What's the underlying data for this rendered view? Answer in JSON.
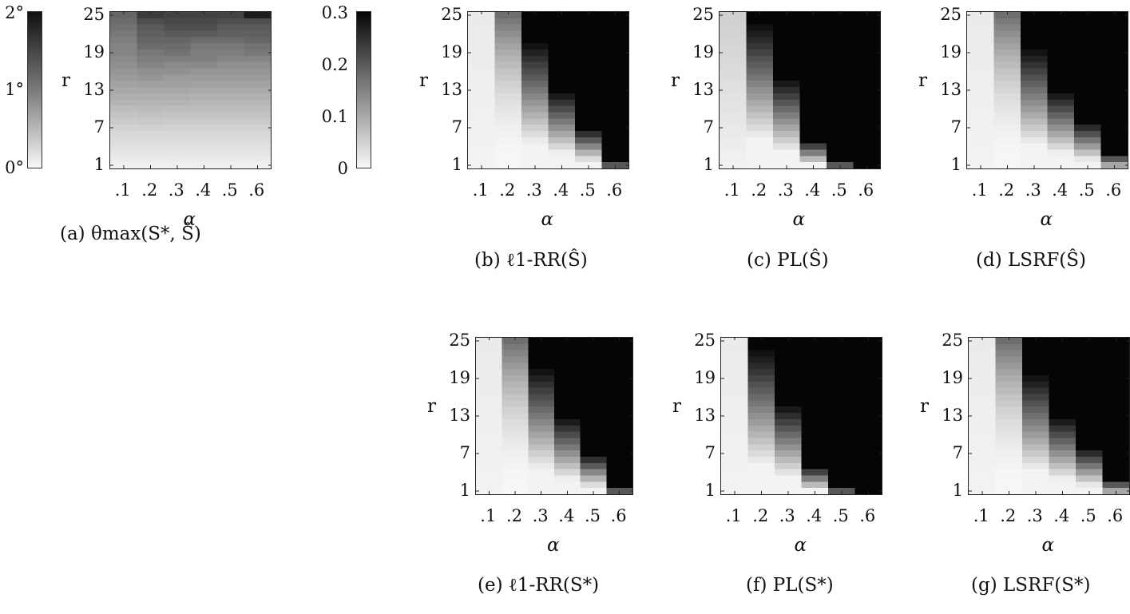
{
  "figure": {
    "colorbars": [
      {
        "id": "a",
        "ticks": [
          "2°",
          "1°",
          "0°"
        ],
        "range": [
          0,
          2
        ]
      },
      {
        "id": "b-g",
        "ticks": [
          "0.3",
          "0.2",
          "0.1",
          "0"
        ],
        "range": [
          0,
          0.3
        ]
      }
    ],
    "axis_common": {
      "xlabel": "α",
      "ylabel": "r",
      "xticks": [
        ".1",
        ".2",
        ".3",
        ".4",
        ".5",
        ".6"
      ],
      "yticks": [
        "25",
        "19",
        "13",
        "7",
        "1"
      ]
    }
  },
  "chart_data": [
    {
      "id": "a",
      "type": "heatmap",
      "title": "(a) θmax(S*, Ŝ)",
      "xlabel": "α",
      "ylabel": "r",
      "x": [
        0.1,
        0.2,
        0.3,
        0.4,
        0.5,
        0.6
      ],
      "y_rows_top_to_bottom": [
        25,
        1
      ],
      "colorbar_range": [
        0,
        2
      ],
      "units": "degrees",
      "values_top_to_bottom": [
        [
          1.2,
          1.55,
          1.5,
          1.5,
          1.5,
          1.8
        ],
        [
          1.15,
          1.4,
          1.45,
          1.45,
          1.4,
          1.4
        ],
        [
          1.1,
          1.3,
          1.4,
          1.4,
          1.3,
          1.3
        ],
        [
          1.05,
          1.25,
          1.3,
          1.3,
          1.25,
          1.25
        ],
        [
          1.0,
          1.2,
          1.2,
          1.15,
          1.15,
          1.2
        ],
        [
          0.95,
          1.15,
          1.15,
          1.05,
          1.05,
          1.1
        ],
        [
          0.95,
          1.05,
          1.1,
          1.0,
          1.0,
          1.05
        ],
        [
          0.9,
          1.0,
          1.0,
          1.0,
          0.95,
          0.95
        ],
        [
          0.85,
          0.95,
          0.9,
          0.9,
          0.85,
          0.85
        ],
        [
          0.8,
          0.85,
          0.85,
          0.8,
          0.8,
          0.8
        ],
        [
          0.75,
          0.8,
          0.75,
          0.75,
          0.75,
          0.75
        ],
        [
          0.7,
          0.72,
          0.72,
          0.7,
          0.7,
          0.7
        ],
        [
          0.65,
          0.66,
          0.66,
          0.64,
          0.64,
          0.64
        ],
        [
          0.6,
          0.6,
          0.6,
          0.58,
          0.58,
          0.58
        ],
        [
          0.55,
          0.55,
          0.55,
          0.53,
          0.53,
          0.53
        ],
        [
          0.48,
          0.5,
          0.48,
          0.48,
          0.48,
          0.48
        ],
        [
          0.42,
          0.44,
          0.42,
          0.42,
          0.42,
          0.42
        ],
        [
          0.36,
          0.38,
          0.36,
          0.36,
          0.36,
          0.36
        ],
        [
          0.3,
          0.32,
          0.3,
          0.3,
          0.3,
          0.3
        ],
        [
          0.26,
          0.26,
          0.26,
          0.26,
          0.26,
          0.26
        ],
        [
          0.22,
          0.22,
          0.22,
          0.22,
          0.22,
          0.22
        ],
        [
          0.18,
          0.18,
          0.18,
          0.18,
          0.18,
          0.18
        ],
        [
          0.14,
          0.14,
          0.14,
          0.14,
          0.14,
          0.14
        ],
        [
          0.1,
          0.1,
          0.1,
          0.1,
          0.1,
          0.1
        ],
        [
          0.06,
          0.06,
          0.06,
          0.06,
          0.06,
          0.06
        ]
      ]
    },
    {
      "id": "b",
      "type": "heatmap",
      "title": "(b) ℓ1-RR(Ŝ)",
      "xlabel": "α",
      "ylabel": "r",
      "colorbar_range": [
        0,
        0.3
      ],
      "x": [
        0.1,
        0.2,
        0.3,
        0.4,
        0.5,
        0.6
      ],
      "y": [
        1,
        25
      ],
      "profile": {
        "onset_r_dark_by_alpha": [
          null,
          null,
          21,
          13,
          7,
          2
        ],
        "col2_top": 0.17,
        "col1_max": 0.02
      }
    },
    {
      "id": "c",
      "type": "heatmap",
      "title": "(c) PL(Ŝ)",
      "xlabel": "α",
      "ylabel": "r",
      "colorbar_range": [
        0,
        0.3
      ],
      "x": [
        0.1,
        0.2,
        0.3,
        0.4,
        0.5,
        0.6
      ],
      "y": [
        1,
        25
      ],
      "profile": {
        "onset_r_dark_by_alpha": [
          null,
          24,
          15,
          5,
          2,
          1
        ],
        "col1_top": 0.09
      }
    },
    {
      "id": "d",
      "type": "heatmap",
      "title": "(d) LSRF(Ŝ)",
      "xlabel": "α",
      "ylabel": "r",
      "colorbar_range": [
        0,
        0.3
      ],
      "x": [
        0.1,
        0.2,
        0.3,
        0.4,
        0.5,
        0.6
      ],
      "y": [
        1,
        25
      ],
      "profile": {
        "onset_r_dark_by_alpha": [
          null,
          null,
          20,
          13,
          8,
          3
        ],
        "col2_top": 0.17
      }
    },
    {
      "id": "e",
      "type": "heatmap",
      "title": "(e) ℓ1-RR(S*)",
      "xlabel": "α",
      "ylabel": "r",
      "colorbar_range": [
        0,
        0.3
      ],
      "x": [
        0.1,
        0.2,
        0.3,
        0.4,
        0.5,
        0.6
      ],
      "y": [
        1,
        25
      ],
      "profile": {
        "onset_r_dark_by_alpha": [
          null,
          null,
          21,
          13,
          7,
          2
        ]
      }
    },
    {
      "id": "f",
      "type": "heatmap",
      "title": "(f) PL(S*)",
      "xlabel": "α",
      "ylabel": "r",
      "colorbar_range": [
        0,
        0.3
      ],
      "x": [
        0.1,
        0.2,
        0.3,
        0.4,
        0.5,
        0.6
      ],
      "y": [
        1,
        25
      ],
      "profile": {
        "onset_r_dark_by_alpha": [
          null,
          24,
          15,
          5,
          2,
          1
        ]
      }
    },
    {
      "id": "g",
      "type": "heatmap",
      "title": "(g) LSRF(S*)",
      "xlabel": "α",
      "ylabel": "r",
      "colorbar_range": [
        0,
        0.3
      ],
      "x": [
        0.1,
        0.2,
        0.3,
        0.4,
        0.5,
        0.6
      ],
      "y": [
        1,
        25
      ],
      "profile": {
        "onset_r_dark_by_alpha": [
          null,
          null,
          20,
          13,
          8,
          3
        ]
      }
    }
  ],
  "captions": {
    "a": "(a) θmax(S*, Ŝ)",
    "b": "(b) ℓ1-RR(Ŝ)",
    "c": "(c) PL(Ŝ)",
    "d": "(d) LSRF(Ŝ)",
    "e": "(e) ℓ1-RR(S*)",
    "f": "(f) PL(S*)",
    "g": "(g) LSRF(S*)"
  }
}
